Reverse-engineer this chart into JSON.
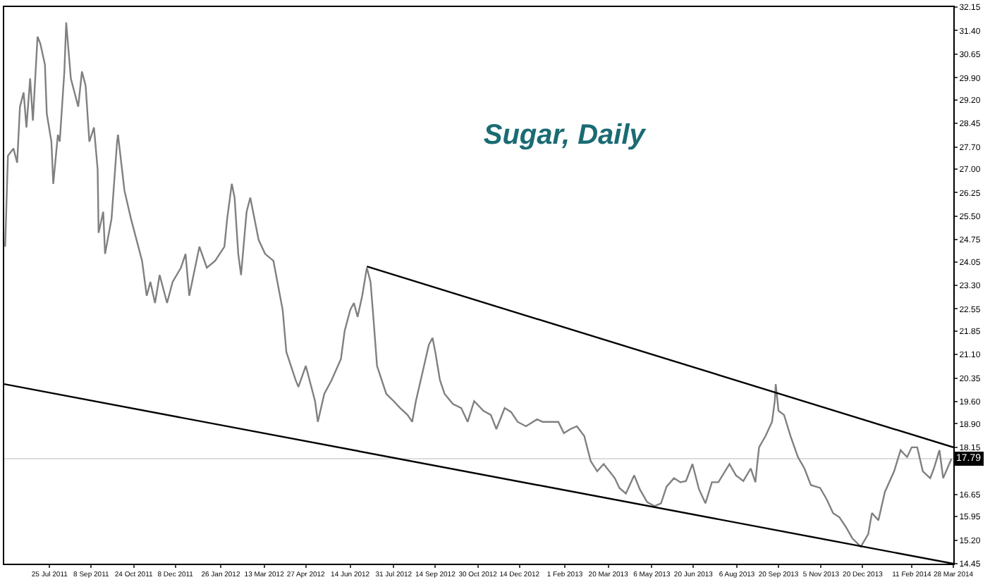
{
  "chart_data": {
    "type": "line",
    "title": "Sugar, Daily",
    "series": [
      {
        "color": "#808080",
        "x": [
          "2011-06-07",
          "2011-06-10",
          "2011-06-16",
          "2011-06-20",
          "2011-06-23",
          "2011-06-27",
          "2011-06-30",
          "2011-07-04",
          "2011-07-07",
          "2011-07-12",
          "2011-07-15",
          "2011-07-20",
          "2011-07-22",
          "2011-07-27",
          "2011-07-29",
          "2011-08-03",
          "2011-08-05",
          "2011-08-10",
          "2011-08-12",
          "2011-08-17",
          "2011-08-25",
          "2011-08-29",
          "2011-09-02",
          "2011-09-06",
          "2011-09-11",
          "2011-09-15",
          "2011-09-16",
          "2011-09-21",
          "2011-09-23",
          "2011-09-30",
          "2011-10-06",
          "2011-10-07",
          "2011-10-14",
          "2011-10-21",
          "2011-11-02",
          "2011-11-07",
          "2011-11-11",
          "2011-11-16",
          "2011-11-21",
          "2011-11-29",
          "2011-12-05",
          "2011-12-14",
          "2011-12-19",
          "2011-12-23",
          "2012-01-03",
          "2012-01-11",
          "2012-01-20",
          "2012-01-30",
          "2012-02-02",
          "2012-02-07",
          "2012-02-10",
          "2012-02-14",
          "2012-02-17",
          "2012-02-23",
          "2012-02-27",
          "2012-03-07",
          "2012-03-14",
          "2012-03-23",
          "2012-04-02",
          "2012-04-06",
          "2012-04-16",
          "2012-04-19",
          "2012-04-27",
          "2012-05-07",
          "2012-05-10",
          "2012-05-17",
          "2012-05-25",
          "2012-06-04",
          "2012-06-08",
          "2012-06-14",
          "2012-06-18",
          "2012-06-22",
          "2012-06-27",
          "2012-07-02",
          "2012-07-06",
          "2012-07-09",
          "2012-07-13",
          "2012-07-23",
          "2012-07-31",
          "2012-08-07",
          "2012-08-15",
          "2012-08-20",
          "2012-08-24",
          "2012-08-31",
          "2012-09-07",
          "2012-09-11",
          "2012-09-14",
          "2012-09-19",
          "2012-09-24",
          "2012-10-03",
          "2012-10-12",
          "2012-10-19",
          "2012-10-26",
          "2012-11-05",
          "2012-11-13",
          "2012-11-19",
          "2012-11-28",
          "2012-12-05",
          "2012-12-12",
          "2012-12-21",
          "2013-01-02",
          "2013-01-08",
          "2013-01-18",
          "2013-01-25",
          "2013-01-31",
          "2013-02-07",
          "2013-02-14",
          "2013-02-22",
          "2013-03-01",
          "2013-03-08",
          "2013-03-15",
          "2013-03-27",
          "2013-04-01",
          "2013-04-08",
          "2013-04-17",
          "2013-04-23",
          "2013-05-01",
          "2013-05-09",
          "2013-05-16",
          "2013-05-22",
          "2013-05-30",
          "2013-06-06",
          "2013-06-12",
          "2013-06-19",
          "2013-06-26",
          "2013-07-03",
          "2013-07-10",
          "2013-07-17",
          "2013-07-29",
          "2013-08-05",
          "2013-08-13",
          "2013-08-21",
          "2013-08-26",
          "2013-08-28",
          "2013-08-30",
          "2013-09-06",
          "2013-09-13",
          "2013-09-16",
          "2013-09-17",
          "2013-09-20",
          "2013-09-26",
          "2013-10-03",
          "2013-10-11",
          "2013-10-18",
          "2013-10-25",
          "2013-11-04",
          "2013-11-11",
          "2013-11-18",
          "2013-11-25",
          "2013-12-02",
          "2013-12-09",
          "2013-12-18",
          "2013-12-26",
          "2013-12-30",
          "2014-01-06",
          "2014-01-13",
          "2014-01-23",
          "2014-01-30",
          "2014-02-06",
          "2014-02-11",
          "2014-02-17",
          "2014-02-23",
          "2014-03-03",
          "2014-03-07",
          "2014-03-13",
          "2014-03-17",
          "2014-03-26"
        ],
        "values": [
          24.53,
          27.42,
          27.65,
          27.2,
          28.98,
          29.43,
          28.32,
          29.88,
          28.54,
          31.21,
          30.99,
          30.32,
          28.76,
          27.87,
          26.53,
          28.09,
          27.87,
          30.1,
          31.66,
          29.88,
          28.98,
          30.1,
          29.65,
          27.87,
          28.32,
          26.98,
          24.97,
          25.64,
          24.3,
          25.42,
          27.87,
          28.09,
          26.31,
          25.42,
          24.08,
          22.97,
          23.41,
          22.74,
          23.63,
          22.74,
          23.41,
          23.86,
          24.3,
          22.97,
          24.53,
          23.86,
          24.08,
          24.53,
          25.42,
          26.53,
          26.09,
          24.3,
          23.63,
          25.64,
          26.09,
          24.75,
          24.3,
          24.08,
          22.52,
          21.18,
          20.29,
          20.07,
          20.74,
          19.62,
          18.96,
          19.85,
          20.29,
          20.96,
          21.85,
          22.52,
          22.74,
          22.3,
          22.97,
          23.86,
          23.41,
          22.3,
          20.74,
          19.85,
          19.62,
          19.4,
          19.18,
          18.96,
          19.62,
          20.51,
          21.41,
          21.63,
          21.18,
          20.29,
          19.85,
          19.53,
          19.4,
          18.96,
          19.62,
          19.31,
          19.18,
          18.73,
          19.4,
          19.27,
          18.96,
          18.82,
          19.04,
          18.96,
          18.96,
          18.96,
          18.6,
          18.73,
          18.82,
          18.51,
          17.71,
          17.39,
          17.62,
          17.17,
          16.86,
          16.68,
          17.26,
          16.82,
          16.41,
          16.28,
          16.37,
          16.9,
          17.17,
          17.04,
          17.08,
          17.62,
          16.82,
          16.37,
          17.04,
          17.04,
          17.62,
          17.26,
          17.08,
          17.48,
          17.04,
          17.62,
          18.15,
          18.51,
          18.96,
          19.62,
          20.16,
          19.31,
          19.18,
          18.51,
          17.84,
          17.48,
          16.95,
          16.86,
          16.5,
          16.06,
          15.92,
          15.61,
          15.25,
          14.99,
          15.39,
          16.06,
          15.83,
          16.73,
          17.39,
          18.06,
          17.84,
          18.15,
          18.15,
          17.39,
          17.17,
          17.48,
          18.06,
          17.17,
          17.79
        ]
      },
      {
        "type": "line",
        "color": "#000000",
        "x": [
          "2012-07-02",
          "2014-03-28"
        ],
        "values": [
          23.9,
          18.15
        ]
      },
      {
        "type": "line",
        "color": "#000000",
        "x": [
          "2011-06-06",
          "2014-03-28"
        ],
        "values": [
          20.16,
          14.45
        ]
      }
    ],
    "xlim": [
      "2011-06-06",
      "2014-03-28"
    ],
    "xticks": [
      {
        "value": "2011-07-25",
        "label": "25 Jul 2011"
      },
      {
        "value": "2011-09-08",
        "label": "8 Sep 2011"
      },
      {
        "value": "2011-10-24",
        "label": "24 Oct 2011"
      },
      {
        "value": "2011-12-08",
        "label": "8 Dec 2011"
      },
      {
        "value": "2012-01-26",
        "label": "26 Jan 2012"
      },
      {
        "value": "2012-03-13",
        "label": "13 Mar 2012"
      },
      {
        "value": "2012-04-27",
        "label": "27 Apr 2012"
      },
      {
        "value": "2012-06-14",
        "label": "14 Jun 2012"
      },
      {
        "value": "2012-07-31",
        "label": "31 Jul 2012"
      },
      {
        "value": "2012-09-14",
        "label": "14 Sep 2012"
      },
      {
        "value": "2012-10-30",
        "label": "30 Oct 2012"
      },
      {
        "value": "2012-12-14",
        "label": "14 Dec 2012"
      },
      {
        "value": "2013-02-01",
        "label": "1 Feb 2013"
      },
      {
        "value": "2013-03-20",
        "label": "20 Mar 2013"
      },
      {
        "value": "2013-05-06",
        "label": "6 May 2013"
      },
      {
        "value": "2013-06-20",
        "label": "20 Jun 2013"
      },
      {
        "value": "2013-08-06",
        "label": "6 Aug 2013"
      },
      {
        "value": "2013-09-20",
        "label": "20 Sep 2013"
      },
      {
        "value": "2013-11-05",
        "label": "5 Nov 2013"
      },
      {
        "value": "2013-12-20",
        "label": "20 Dec 2013"
      },
      {
        "value": "2014-02-11",
        "label": "11 Feb 2014"
      },
      {
        "value": "2014-03-28",
        "label": "28 Mar 2014"
      }
    ],
    "ylim": [
      14.45,
      32.15
    ],
    "yticks": [
      {
        "value": 32.15,
        "label": "32.15"
      },
      {
        "value": 31.4,
        "label": "31.40"
      },
      {
        "value": 30.65,
        "label": "30.65"
      },
      {
        "value": 29.9,
        "label": "29.90"
      },
      {
        "value": 29.2,
        "label": "29.20"
      },
      {
        "value": 28.45,
        "label": "28.45"
      },
      {
        "value": 27.7,
        "label": "27.70"
      },
      {
        "value": 27.0,
        "label": "27.00"
      },
      {
        "value": 26.25,
        "label": "26.25"
      },
      {
        "value": 25.5,
        "label": "25.50"
      },
      {
        "value": 24.75,
        "label": "24.75"
      },
      {
        "value": 24.05,
        "label": "24.05"
      },
      {
        "value": 23.3,
        "label": "23.30"
      },
      {
        "value": 22.55,
        "label": "22.55"
      },
      {
        "value": 21.85,
        "label": "21.85"
      },
      {
        "value": 21.1,
        "label": "21.10"
      },
      {
        "value": 20.35,
        "label": "20.35"
      },
      {
        "value": 19.6,
        "label": "19.60"
      },
      {
        "value": 18.9,
        "label": "18.90"
      },
      {
        "value": 18.15,
        "label": "18.15"
      },
      {
        "value": 16.65,
        "label": "16.65"
      },
      {
        "value": 15.95,
        "label": "15.95"
      },
      {
        "value": 15.2,
        "label": "15.20"
      },
      {
        "value": 14.45,
        "label": "14.45"
      }
    ],
    "ref_lines": [
      {
        "axis": "y",
        "value": 17.79,
        "label": "17.79",
        "color": "#dddddd"
      }
    ],
    "grid": false
  }
}
